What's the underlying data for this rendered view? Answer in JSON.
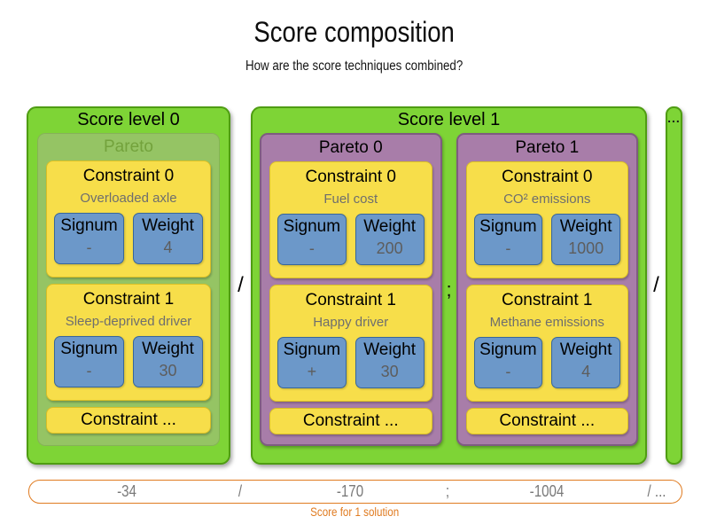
{
  "header": {
    "title": "Score composition",
    "subtitle": "How are the score techniques combined?"
  },
  "labels": {
    "signum": "Signum",
    "weight": "Weight"
  },
  "diagram": {
    "level_separator": "/",
    "levels": [
      {
        "title": "Score level 0",
        "paretos": [
          {
            "title": "Pareto",
            "constraints": [
              {
                "title": "Constraint 0",
                "name": "Overloaded axle",
                "signum": "-",
                "weight": "4"
              },
              {
                "title": "Constraint 1",
                "name": "Sleep-deprived driver",
                "signum": "-",
                "weight": "30"
              }
            ],
            "more_label": "Constraint ..."
          }
        ]
      },
      {
        "title": "Score level 1",
        "pareto_separator": ";",
        "paretos": [
          {
            "title": "Pareto 0",
            "constraints": [
              {
                "title": "Constraint 0",
                "name": "Fuel cost",
                "signum": "-",
                "weight": "200"
              },
              {
                "title": "Constraint 1",
                "name": "Happy driver",
                "signum": "+",
                "weight": "30"
              }
            ],
            "more_label": "Constraint ..."
          },
          {
            "title": "Pareto 1",
            "constraints": [
              {
                "title": "Constraint 0",
                "name": "CO² emissions",
                "signum": "-",
                "weight": "1000"
              },
              {
                "title": "Constraint 1",
                "name": "Methane emissions",
                "signum": "-",
                "weight": "4"
              }
            ],
            "more_label": "Constraint ..."
          }
        ]
      },
      {
        "title": "..."
      }
    ]
  },
  "score_bar": {
    "items": [
      "-34",
      "/",
      "-170",
      ";",
      "-1004",
      "/ ..."
    ],
    "caption": "Score for 1 solution"
  },
  "colors": {
    "level_green": "#7ed436",
    "level_green_border": "#4f9d12",
    "pareto_green": "#95c464",
    "pareto_green_text": "#73a23c",
    "pareto_purple": "#a87da9",
    "pareto_purple_border": "#7e5c80",
    "constraint_yellow": "#f7de4a",
    "constraint_yellow_border": "#d9bf25",
    "signum_blue": "#6c98c9",
    "signum_blue_border": "#38679b",
    "muted_text": "#6e6e6e",
    "accent_orange": "#e07b20"
  }
}
